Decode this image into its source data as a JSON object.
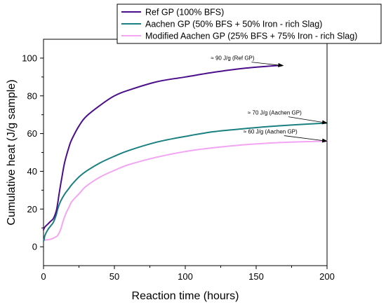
{
  "chart_data": {
    "type": "line",
    "xlabel": "Reaction time (hours)",
    "ylabel": "Cumulative heat (J/g sample)",
    "xlim": [
      0,
      200
    ],
    "ylim": [
      -10,
      110
    ],
    "xticks": [
      "0",
      "50",
      "100",
      "150",
      "200"
    ],
    "yticks": [
      "0",
      "20",
      "40",
      "60",
      "80",
      "100"
    ],
    "grid": false,
    "legend_position": "top-right",
    "series": [
      {
        "name": "Ref GP (100% BFS)",
        "color": "#4b0f8a",
        "x": [
          0,
          1,
          3,
          5,
          7,
          9,
          10,
          11,
          13,
          15,
          18,
          20,
          25,
          30,
          40,
          50,
          60,
          80,
          100,
          120,
          140,
          160,
          168
        ],
        "y": [
          9,
          10.5,
          12,
          13.5,
          15,
          19,
          23,
          28,
          37,
          45,
          53,
          57,
          64,
          69,
          75,
          80,
          83,
          87.5,
          90,
          92.5,
          94.5,
          95.8,
          96.2
        ]
      },
      {
        "name": "Aachen GP (50% BFS + 50% Iron - rich Slag)",
        "color": "#1a8080",
        "x": [
          0,
          0.5,
          1,
          3,
          5,
          7,
          9,
          10,
          12,
          15,
          18,
          20,
          25,
          30,
          40,
          50,
          60,
          80,
          100,
          120,
          140,
          160,
          180,
          200
        ],
        "y": [
          3,
          4,
          6,
          9,
          11,
          13,
          17,
          20,
          24,
          28,
          31,
          33,
          37,
          40,
          44.5,
          48,
          51,
          55.5,
          58.5,
          61,
          62.5,
          63.8,
          64.8,
          65.6
        ]
      },
      {
        "name": "Modified Aachen GP (25% BFS + 75% Iron - rich Slag)",
        "color": "#f2a5f2",
        "x": [
          0,
          5,
          8,
          10,
          12,
          14,
          16,
          18,
          20,
          25,
          30,
          40,
          50,
          60,
          80,
          100,
          120,
          140,
          160,
          180,
          200
        ],
        "y": [
          3.5,
          4,
          5,
          6,
          9,
          14,
          18,
          21,
          24,
          28,
          32,
          37,
          40.5,
          43.5,
          47.5,
          50.5,
          52.5,
          54,
          55,
          55.6,
          56
        ]
      }
    ],
    "annotations": [
      {
        "text": "≈ 90 J/g (Ref GP)",
        "text_x": 118,
        "text_y": 99,
        "arrow_to": [
          169,
          96
        ]
      },
      {
        "text": "≈ 70 J/g (Aachen GP)",
        "text_x": 144,
        "text_y": 70,
        "arrow_to": [
          200,
          65.6
        ]
      },
      {
        "text": "≈ 60 J/g (Aachen GP)",
        "text_x": 141,
        "text_y": 60,
        "arrow_to": [
          200,
          56
        ]
      }
    ]
  }
}
